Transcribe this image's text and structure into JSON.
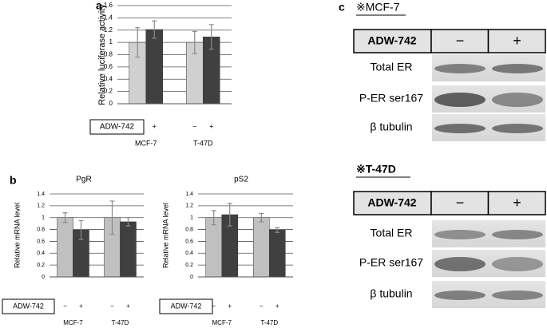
{
  "chart_data": [
    {
      "type": "bar",
      "panel_label": "a",
      "y_label": "Relative luciferase activity",
      "row_label": "ADW-742",
      "categories": [
        "MCF-7",
        "T-47D"
      ],
      "series": [
        {
          "name": "−",
          "color": "#d0d0d0",
          "values": [
            1.0,
            1.0
          ],
          "errors": [
            0.24,
            0.18
          ]
        },
        {
          "name": "+",
          "color": "#404040",
          "values": [
            1.21,
            1.09
          ],
          "errors": [
            0.14,
            0.2
          ]
        }
      ],
      "ylim": [
        0,
        1.6
      ],
      "yticks": [
        0,
        0.2,
        0.4,
        0.6,
        0.8,
        1,
        1.2,
        1.4,
        1.6
      ],
      "grid": true
    },
    {
      "type": "bar",
      "panel_label": "b",
      "title": "PgR",
      "y_label": "Relative mRNA level",
      "row_label": "ADW-742",
      "categories": [
        "MCF-7",
        "T-47D"
      ],
      "series": [
        {
          "name": "−",
          "color": "#c0c0c0",
          "values": [
            1.0,
            1.0
          ],
          "errors": [
            0.08,
            0.28
          ]
        },
        {
          "name": "+",
          "color": "#404040",
          "values": [
            0.79,
            0.93
          ],
          "errors": [
            0.16,
            0.07
          ]
        }
      ],
      "ylim": [
        0,
        1.4
      ],
      "yticks": [
        0,
        0.2,
        0.4,
        0.6,
        0.8,
        1,
        1.2,
        1.4
      ],
      "grid": true
    },
    {
      "type": "bar",
      "title": "pS2",
      "y_label": "Relative mRNA level",
      "row_label": "ADW-742",
      "categories": [
        "MCF-7",
        "T-47D"
      ],
      "series": [
        {
          "name": "−",
          "color": "#c0c0c0",
          "values": [
            1.0,
            1.0
          ],
          "errors": [
            0.12,
            0.07
          ]
        },
        {
          "name": "+",
          "color": "#404040",
          "values": [
            1.05,
            0.79
          ],
          "errors": [
            0.19,
            0.04
          ]
        }
      ],
      "ylim": [
        0,
        1.4
      ],
      "yticks": [
        0,
        0.2,
        0.4,
        0.6,
        0.8,
        1,
        1.2,
        1.4
      ],
      "grid": true
    }
  ],
  "panel_c": {
    "label": "c",
    "blots": [
      {
        "title": "※MCF-7",
        "header": "ADW-742",
        "columns": [
          "−",
          "+"
        ],
        "rows": [
          "Total ER",
          "P-ER ser167",
          "β tubulin"
        ]
      },
      {
        "title": "※T-47D",
        "header": "ADW-742",
        "columns": [
          "−",
          "+"
        ],
        "rows": [
          "Total ER",
          "P-ER ser167",
          "β tubulin"
        ]
      }
    ]
  }
}
